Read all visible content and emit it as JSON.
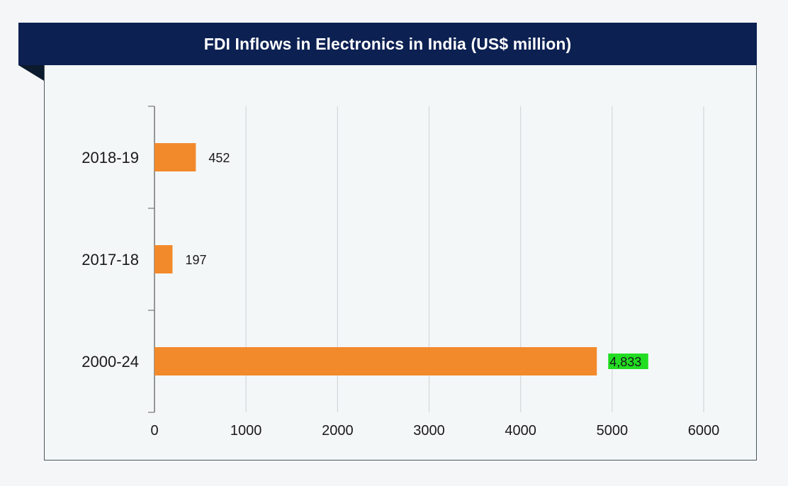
{
  "chart_data": {
    "type": "bar",
    "orientation": "horizontal",
    "title": "FDI Inflows in Electronics in India (US$ million)",
    "categories": [
      "2018-19",
      "2017-18",
      "2000-24"
    ],
    "values": [
      452,
      197,
      4833
    ],
    "data_labels": [
      "452",
      "197",
      "4,833"
    ],
    "highlight_label_index": 2,
    "xlim": [
      0,
      6000
    ],
    "xticks": [
      0,
      1000,
      2000,
      3000,
      4000,
      5000,
      6000
    ],
    "xlabel": "",
    "ylabel": "",
    "grid": "vertical",
    "legend": "none",
    "colors": {
      "bar": "#f28a2b",
      "banner": "#0c2052",
      "highlight": "#22dd22",
      "grid": "#d4d8da",
      "axis": "#777777"
    }
  }
}
